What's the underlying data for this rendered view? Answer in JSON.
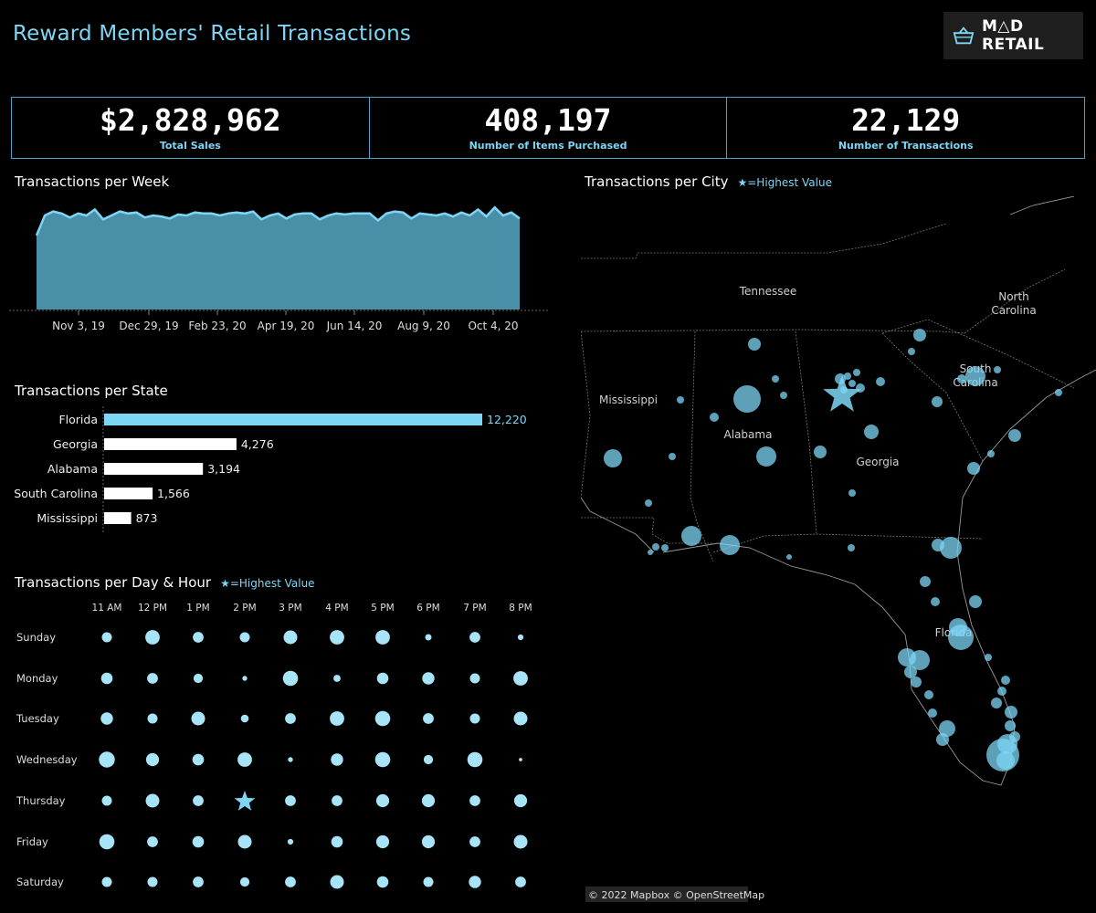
{
  "header": {
    "title": "Reward Members' Retail Transactions",
    "logo_text": "M△D RETAIL"
  },
  "kpis": [
    {
      "value": "$2,828,962",
      "label": "Total Sales"
    },
    {
      "value": "408,197",
      "label": "Number of Items Purchased"
    },
    {
      "value": "22,129",
      "label": "Number of Transactions"
    }
  ],
  "chart_data": [
    {
      "type": "area",
      "title": "Transactions per Week",
      "x_ticks": [
        "Nov 3, 19",
        "Dec 29, 19",
        "Feb 23, 20",
        "Apr 19, 20",
        "Jun 14, 20",
        "Aug 9, 20",
        "Oct 4, 20"
      ],
      "values": [
        370,
        470,
        490,
        480,
        460,
        480,
        470,
        500,
        450,
        470,
        490,
        480,
        485,
        460,
        470,
        465,
        455,
        475,
        470,
        485,
        480,
        480,
        470,
        480,
        485,
        480,
        490,
        450,
        470,
        480,
        455,
        475,
        480,
        480,
        450,
        470,
        480,
        475,
        480,
        480,
        480,
        445,
        480,
        490,
        485,
        455,
        480,
        475,
        470,
        480,
        465,
        485,
        470,
        500,
        465,
        510,
        470,
        485,
        455
      ],
      "color": "#4a8fa8",
      "line_color": "#7ed6f5"
    },
    {
      "type": "bar",
      "title": "Transactions per State",
      "categories": [
        "Florida",
        "Georgia",
        "Alabama",
        "South Carolina",
        "Mississippi"
      ],
      "values": [
        12220,
        4276,
        3194,
        1566,
        873
      ],
      "value_labels": [
        "12,220",
        "4,276",
        "3,194",
        "1,566",
        "873"
      ],
      "highlight_color": "#7ed6f5",
      "bar_color": "#ffffff"
    },
    {
      "type": "scatter",
      "title": "Transactions per Day & Hour",
      "note": "★=Highest Value",
      "hours": [
        "11 AM",
        "12 PM",
        "1 PM",
        "2 PM",
        "3 PM",
        "4 PM",
        "5 PM",
        "6 PM",
        "7 PM",
        "8 PM"
      ],
      "days": [
        "Sunday",
        "Monday",
        "Tuesday",
        "Wednesday",
        "Thursday",
        "Friday",
        "Saturday"
      ],
      "values": [
        [
          0.5,
          0.8,
          0.55,
          0.5,
          0.75,
          0.8,
          0.8,
          0.25,
          0.55,
          0.2
        ],
        [
          0.6,
          0.55,
          0.45,
          0.15,
          0.85,
          0.3,
          0.6,
          0.65,
          0.5,
          0.8
        ],
        [
          0.65,
          0.5,
          0.75,
          0.35,
          0.55,
          0.8,
          0.85,
          0.55,
          0.5,
          0.75
        ],
        [
          0.9,
          0.7,
          0.6,
          0.8,
          0.15,
          0.65,
          0.85,
          0.45,
          0.85,
          0.05
        ],
        [
          0.5,
          0.75,
          0.55,
          1.0,
          0.55,
          0.55,
          0.7,
          0.7,
          0.55,
          0.7
        ],
        [
          0.85,
          0.55,
          0.6,
          0.75,
          0.2,
          0.6,
          0.7,
          0.7,
          0.55,
          0.75
        ],
        [
          0.5,
          0.5,
          0.55,
          0.45,
          0.55,
          0.75,
          0.6,
          0.5,
          0.65,
          0.55
        ]
      ],
      "highest": {
        "day": "Thursday",
        "hour": "2 PM"
      },
      "color": "#a8e4f8",
      "star_color": "#7ed6f5"
    },
    {
      "type": "map",
      "title": "Transactions per City",
      "note": "★=Highest Value",
      "state_labels": [
        "Tennessee",
        "North Carolina",
        "Mississippi",
        "Alabama",
        "Georgia",
        "South Carolina",
        "Florida"
      ],
      "attribution": "© 2022 Mapbox © OpenStreetMap",
      "bubble_color": "#7ed6f5"
    }
  ]
}
